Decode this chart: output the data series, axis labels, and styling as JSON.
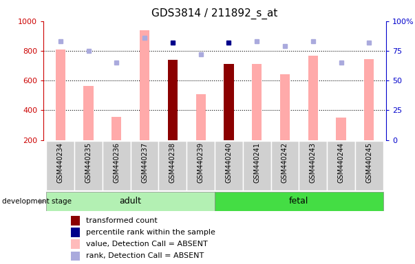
{
  "title": "GDS3814 / 211892_s_at",
  "samples": [
    "GSM440234",
    "GSM440235",
    "GSM440236",
    "GSM440237",
    "GSM440238",
    "GSM440239",
    "GSM440240",
    "GSM440241",
    "GSM440242",
    "GSM440243",
    "GSM440244",
    "GSM440245"
  ],
  "bar_values": [
    810,
    565,
    355,
    940,
    740,
    510,
    710,
    710,
    640,
    765,
    350,
    745
  ],
  "bar_colors": [
    "#ffaaaa",
    "#ffaaaa",
    "#ffaaaa",
    "#ffaaaa",
    "#8b0000",
    "#ffaaaa",
    "#8b0000",
    "#ffaaaa",
    "#ffaaaa",
    "#ffaaaa",
    "#ffaaaa",
    "#ffaaaa"
  ],
  "rank_values": [
    83,
    75,
    65,
    86,
    82,
    72,
    82,
    83,
    79,
    83,
    65,
    82
  ],
  "rank_colors": [
    "#aaaadd",
    "#aaaadd",
    "#aaaadd",
    "#aaaadd",
    "#00008b",
    "#aaaadd",
    "#00008b",
    "#aaaadd",
    "#aaaadd",
    "#aaaadd",
    "#aaaadd",
    "#aaaadd"
  ],
  "ylim_left": [
    200,
    1000
  ],
  "ylim_right": [
    0,
    100
  ],
  "yticks_left": [
    200,
    400,
    600,
    800,
    1000
  ],
  "yticks_right": [
    0,
    25,
    50,
    75,
    100
  ],
  "adult_color": "#b3f0b3",
  "fetal_color": "#44dd44",
  "legend_items": [
    {
      "label": "transformed count",
      "color": "#8b0000"
    },
    {
      "label": "percentile rank within the sample",
      "color": "#00008b"
    },
    {
      "label": "value, Detection Call = ABSENT",
      "color": "#ffbbbb"
    },
    {
      "label": "rank, Detection Call = ABSENT",
      "color": "#aaaadd"
    }
  ],
  "bar_width": 0.35,
  "left_axis_color": "#cc0000",
  "right_axis_color": "#0000cc",
  "adult_count": 6,
  "fetal_count": 6
}
